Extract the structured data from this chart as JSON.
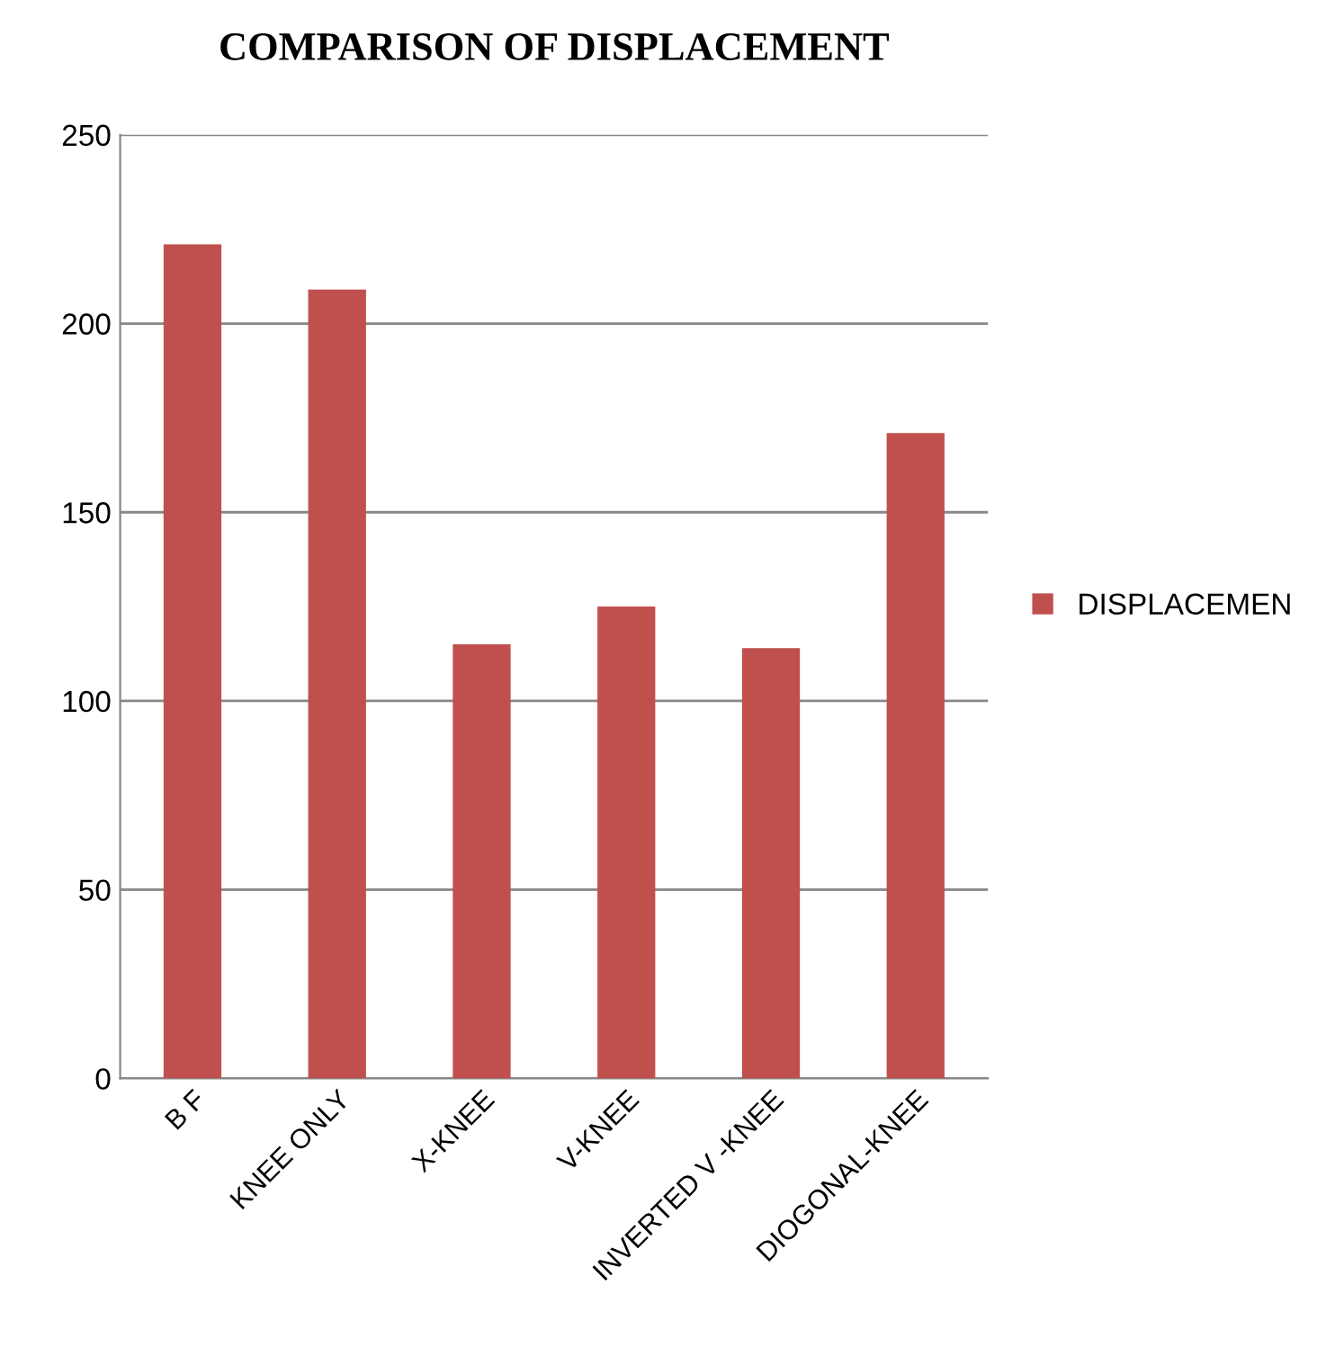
{
  "chart_data": {
    "type": "bar",
    "title": "COMPARISON OF DISPLACEMENT",
    "categories": [
      "B F",
      "KNEE ONLY",
      "X-KNEE",
      "V-KNEE",
      "INVERTED V -KNEE",
      "DIOGONAL-KNEE"
    ],
    "series": [
      {
        "name": "DISPLACEMEN",
        "color": "#c0504d",
        "values": [
          221,
          209,
          115,
          125,
          114,
          171
        ]
      }
    ],
    "ylim": [
      0,
      250
    ],
    "yticks": [
      0,
      50,
      100,
      150,
      200,
      250
    ],
    "grid": "y",
    "legend": "right"
  }
}
